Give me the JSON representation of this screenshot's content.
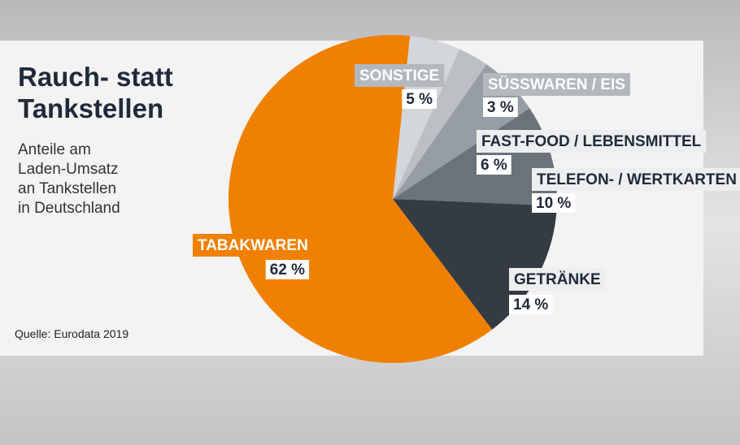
{
  "chart_data": {
    "type": "pie",
    "title_lines": [
      "Rauch- statt",
      "Tankstellen"
    ],
    "subtitle_lines": [
      "Anteile am",
      "Laden-Umsatz",
      "an Tankstellen",
      "in Deutschland"
    ],
    "source": "Quelle: Eurodata 2019",
    "categories": [
      "SONSTIGE",
      "SÜSSWAREN / EIS",
      "FAST-FOOD / LEBENSMITTEL",
      "TELEFON- / WERTKARTEN",
      "GETRÄNKE",
      "TABAKWAREN"
    ],
    "values": [
      5,
      3,
      6,
      10,
      14,
      62
    ],
    "value_labels": [
      "5 %",
      "3 %",
      "6 %",
      "10 %",
      "14 %",
      "62 %"
    ],
    "colors": [
      "#d3d6da",
      "#bcc0c5",
      "#979da4",
      "#6b727a",
      "#343b42",
      "#f08000"
    ]
  }
}
